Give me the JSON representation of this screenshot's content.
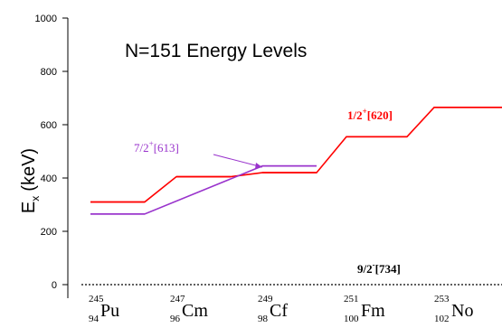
{
  "chart_data": {
    "type": "line",
    "title": "N=151 Energy Levels",
    "ylabel": {
      "main": "E",
      "sub": "x",
      "unit": "(keV)"
    },
    "ylim": [
      -50,
      1000
    ],
    "yticks": [
      0,
      200,
      400,
      600,
      800,
      1000
    ],
    "categories": [
      {
        "A": "245",
        "Z": "94",
        "sym": "Pu"
      },
      {
        "A": "247",
        "Z": "96",
        "sym": "Cm"
      },
      {
        "A": "249",
        "Z": "98",
        "sym": "Cf"
      },
      {
        "A": "251",
        "Z": "100",
        "sym": "Fm"
      },
      {
        "A": "253",
        "Z": "102",
        "sym": "No"
      }
    ],
    "series": [
      {
        "name": "1/2+[620]",
        "color": "#ff0000",
        "values": [
          310,
          405,
          420,
          555,
          665
        ]
      },
      {
        "name": "7/2+[613]",
        "color": "#9933cc",
        "values": [
          265,
          null,
          445,
          null,
          null
        ]
      }
    ],
    "ground": {
      "value": 0,
      "label": "9/2-[734]"
    },
    "annotations": [
      {
        "num": "7/2",
        "sup": "+",
        "tail": "[613]",
        "color": "#9933cc"
      },
      {
        "num": "1/2",
        "sup": "+",
        "tail": "[620]",
        "color": "#ff0000"
      },
      {
        "num": "9/2",
        "sup": "-",
        "tail": "[734]",
        "color": "#000000"
      }
    ]
  }
}
